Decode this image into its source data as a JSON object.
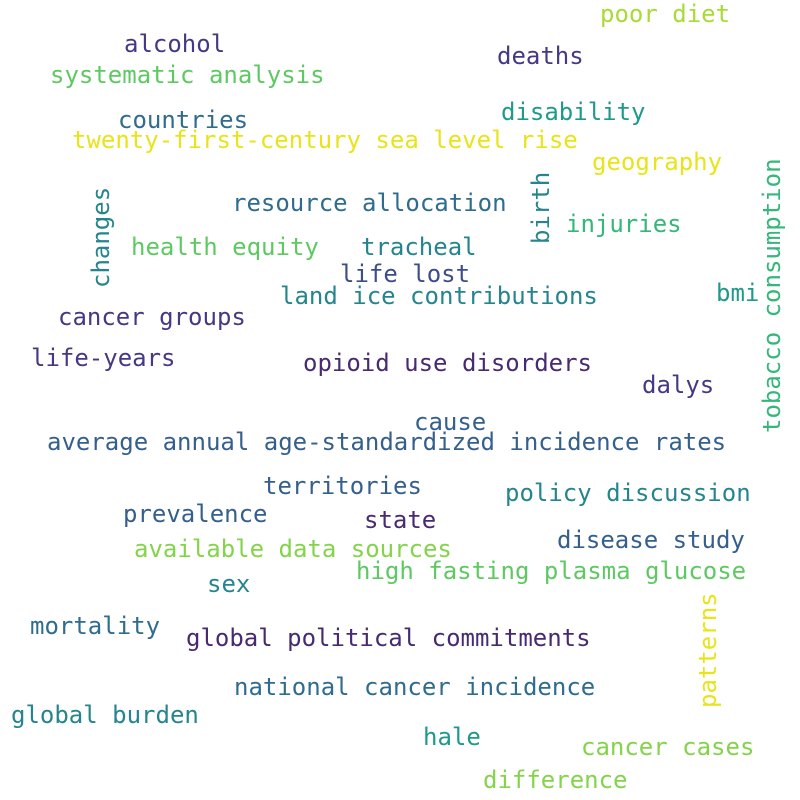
{
  "words": {
    "poor_diet": "poor diet",
    "alcohol": "alcohol",
    "deaths": "deaths",
    "systematic_analysis": "systematic analysis",
    "disability": "disability",
    "countries": "countries",
    "sea_level_rise": "twenty-first-century sea level rise",
    "tobacco_consumption": "tobacco consumption",
    "geography": "geography",
    "birth": "birth",
    "changes": "changes",
    "resource_allocation": "resource allocation",
    "injuries": "injuries",
    "health_equity": "health equity",
    "tracheal": "tracheal",
    "life_lost": "life lost",
    "bmi": "bmi",
    "land_ice_contributions": "land ice contributions",
    "cancer_groups": "cancer groups",
    "life_years": "life-years",
    "opioid_use_disorders": "opioid use disorders",
    "dalys": "dalys",
    "cause": "cause",
    "incidence_rates": "average annual age-standardized incidence rates",
    "territories": "territories",
    "policy_discussion": "policy discussion",
    "prevalence": "prevalence",
    "state": "state",
    "disease_study": "disease study",
    "available_data_sources": "available data sources",
    "high_fasting_plasma_glucose": "high fasting plasma glucose",
    "sex": "sex",
    "patterns": "patterns",
    "mortality": "mortality",
    "global_political_commitments": "global political commitments",
    "national_cancer_incidence": "national cancer incidence",
    "global_burden": "global burden",
    "hale": "hale",
    "cancer_cases": "cancer cases",
    "difference": "difference"
  },
  "colors": {
    "background": "#ffffff",
    "dark_purple": "#482a71",
    "purple": "#443a83",
    "indigo": "#3d4d8a",
    "blue": "#355f8d",
    "steel": "#2f6c8e",
    "teal": "#25858e",
    "teal_green": "#1f9a8a",
    "green": "#35b779",
    "light_green": "#5ec962",
    "lime": "#84d44b",
    "yellow_lime": "#a8db34",
    "yellow": "#e8e419"
  }
}
